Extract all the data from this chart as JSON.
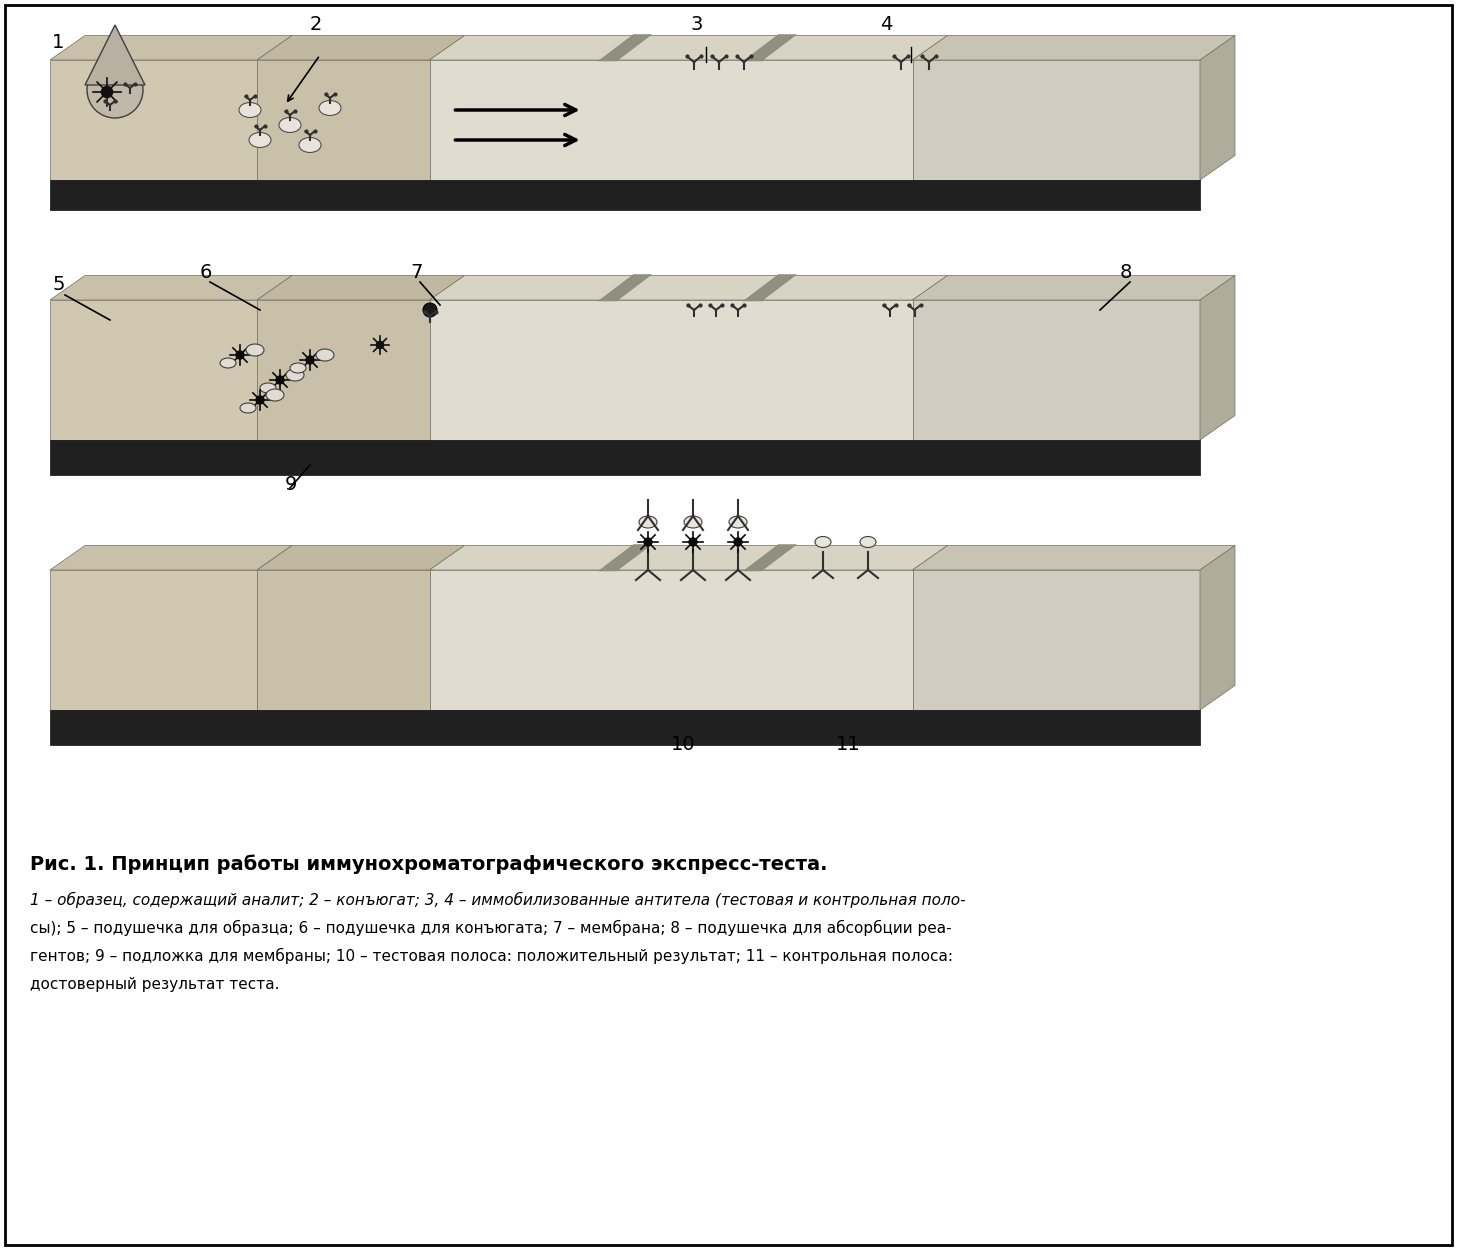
{
  "bg_color": "#ffffff",
  "border_color": "#000000",
  "fig_width": 14.57,
  "fig_height": 12.55,
  "title": "Рис. 1. Принцип работы иммунохроматографического экспресс-теста.",
  "caption_line1": "1 – образец, содержащий аналит; 2 – конъюгат; 3, 4 – иммобилизованные антитела (тестовая и контрольная поло-",
  "caption_line2": "сы); 5 – подушечка для образца; 6 – подушечка для конъюгата; 7 – мембрана; 8 – подушечка для абсорбции реа-",
  "caption_line3": "гентов; 9 – подложка для мембраны; 10 – тестовая полоса: положительный результат; 11 – контрольная полоса:",
  "caption_line4": "достоверный результат теста.",
  "strip_color_light": "#d4d0c8",
  "strip_color_dark": "#b0a898",
  "strip_color_membrane": "#c8c4b4",
  "strip_color_zones": "#a8a898",
  "black": "#000000",
  "dark_gray": "#404040",
  "medium_gray": "#808080",
  "light_gray": "#c0c0c0"
}
